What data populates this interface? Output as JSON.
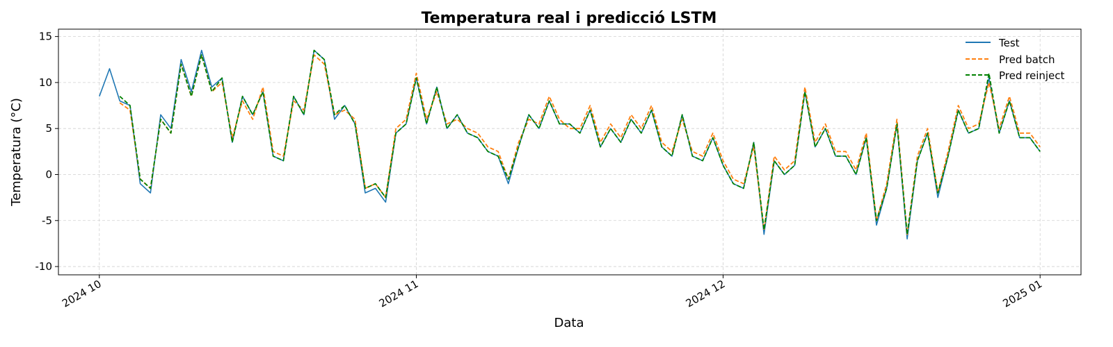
{
  "chart_data": {
    "type": "line",
    "title": "Temperatura real i predicció LSTM",
    "xlabel": "Data",
    "ylabel": "Temperatura (°C)",
    "x_ticks": [
      "2024 10",
      "2024 11",
      "2024 12",
      "2025 01"
    ],
    "x_tick_dates": [
      "2024-10-01",
      "2024-11-01",
      "2024-12-01",
      "2025-01-01"
    ],
    "xlim": [
      "2024-09-27",
      "2025-01-05"
    ],
    "y_ticks": [
      -10,
      -5,
      0,
      5,
      10,
      15
    ],
    "ylim": [
      -10.9,
      15.8
    ],
    "grid": true,
    "legend_position": "top-right",
    "series": [
      {
        "name": "Test",
        "color": "#1f77b4",
        "style": "solid"
      },
      {
        "name": "Pred batch",
        "color": "#ff7f0e",
        "style": "dashed"
      },
      {
        "name": "Pred reinject",
        "color": "#008000",
        "style": "dashed"
      }
    ],
    "x": [
      "2024-10-01",
      "2024-10-02",
      "2024-10-03",
      "2024-10-04",
      "2024-10-05",
      "2024-10-06",
      "2024-10-07",
      "2024-10-08",
      "2024-10-09",
      "2024-10-10",
      "2024-10-11",
      "2024-10-12",
      "2024-10-13",
      "2024-10-14",
      "2024-10-15",
      "2024-10-16",
      "2024-10-17",
      "2024-10-18",
      "2024-10-19",
      "2024-10-20",
      "2024-10-21",
      "2024-10-22",
      "2024-10-23",
      "2024-10-24",
      "2024-10-25",
      "2024-10-26",
      "2024-10-27",
      "2024-10-28",
      "2024-10-29",
      "2024-10-30",
      "2024-10-31",
      "2024-11-01",
      "2024-11-02",
      "2024-11-03",
      "2024-11-04",
      "2024-11-05",
      "2024-11-06",
      "2024-11-07",
      "2024-11-08",
      "2024-11-09",
      "2024-11-10",
      "2024-11-11",
      "2024-11-12",
      "2024-11-13",
      "2024-11-14",
      "2024-11-15",
      "2024-11-16",
      "2024-11-17",
      "2024-11-18",
      "2024-11-19",
      "2024-11-20",
      "2024-11-21",
      "2024-11-22",
      "2024-11-23",
      "2024-11-24",
      "2024-11-25",
      "2024-11-26",
      "2024-11-27",
      "2024-11-28",
      "2024-11-29",
      "2024-11-30",
      "2024-12-01",
      "2024-12-02",
      "2024-12-03",
      "2024-12-04",
      "2024-12-05",
      "2024-12-06",
      "2024-12-07",
      "2024-12-08",
      "2024-12-09",
      "2024-12-10",
      "2024-12-11",
      "2024-12-12",
      "2024-12-13",
      "2024-12-14",
      "2024-12-15",
      "2024-12-16",
      "2024-12-17",
      "2024-12-18",
      "2024-12-19",
      "2024-12-20",
      "2024-12-21",
      "2024-12-22",
      "2024-12-23",
      "2024-12-24",
      "2024-12-25",
      "2024-12-26",
      "2024-12-27",
      "2024-12-28",
      "2024-12-29",
      "2024-12-30",
      "2024-12-31",
      "2025-01-01"
    ],
    "test": [
      8.5,
      11.5,
      8.0,
      7.5,
      -1.0,
      -2.0,
      6.5,
      5.0,
      12.5,
      9.0,
      13.5,
      9.5,
      10.5,
      3.5,
      8.5,
      6.5,
      9.0,
      2.0,
      1.5,
      8.5,
      6.5,
      13.5,
      12.5,
      6.0,
      7.5,
      5.5,
      -2.0,
      -1.5,
      -3.0,
      4.5,
      5.5,
      10.5,
      5.5,
      9.5,
      5.0,
      6.5,
      4.5,
      4.0,
      2.5,
      2.0,
      -1.0,
      3.0,
      6.5,
      5.0,
      8.0,
      5.5,
      5.5,
      4.5,
      7.0,
      3.0,
      5.0,
      3.5,
      6.0,
      4.5,
      7.0,
      3.0,
      2.0,
      6.5,
      2.0,
      1.5,
      4.0,
      1.0,
      -1.0,
      -1.5,
      3.5,
      -6.5,
      1.5,
      0.0,
      1.0,
      9.0,
      3.0,
      5.0,
      2.0,
      2.0,
      0.0,
      4.0,
      -5.5,
      -1.5,
      5.5,
      -7.0,
      1.5,
      4.5,
      -2.5,
      2.0,
      7.0,
      4.5,
      5.0,
      10.5,
      4.5,
      8.0,
      4.0,
      4.0,
      2.5
    ],
    "pred_batch": [
      null,
      null,
      7.8,
      7.0,
      -0.5,
      -1.5,
      6.0,
      4.5,
      12.0,
      8.5,
      13.0,
      9.0,
      10.0,
      4.0,
      8.0,
      6.0,
      9.5,
      2.5,
      2.0,
      8.0,
      7.0,
      13.0,
      12.0,
      6.5,
      7.0,
      6.0,
      -1.5,
      -1.0,
      -2.5,
      5.0,
      6.0,
      11.0,
      6.0,
      9.0,
      5.5,
      6.0,
      5.0,
      4.5,
      3.0,
      2.5,
      -0.5,
      3.5,
      6.0,
      5.5,
      8.5,
      6.0,
      5.0,
      5.0,
      7.5,
      3.5,
      5.5,
      4.0,
      6.5,
      5.0,
      7.5,
      3.5,
      2.5,
      6.0,
      2.5,
      2.0,
      4.5,
      1.5,
      -0.5,
      -1.0,
      3.0,
      -6.0,
      2.0,
      0.5,
      1.5,
      9.5,
      3.5,
      5.5,
      2.5,
      2.5,
      0.5,
      4.5,
      -5.0,
      -1.0,
      6.0,
      -6.5,
      2.0,
      5.0,
      -2.0,
      2.5,
      7.5,
      5.0,
      5.5,
      10.0,
      5.0,
      8.5,
      4.5,
      4.5,
      3.0
    ],
    "pred_reinject": [
      null,
      null,
      8.5,
      7.5,
      -0.5,
      -1.5,
      6.0,
      4.5,
      12.0,
      8.5,
      13.0,
      9.0,
      10.5,
      3.5,
      8.5,
      6.5,
      9.0,
      2.0,
      1.5,
      8.5,
      6.5,
      13.5,
      12.5,
      6.5,
      7.5,
      5.5,
      -1.5,
      -1.0,
      -2.5,
      4.5,
      5.5,
      10.5,
      5.5,
      9.5,
      5.0,
      6.5,
      4.5,
      4.0,
      2.5,
      2.0,
      -0.5,
      3.0,
      6.5,
      5.0,
      8.0,
      5.5,
      5.5,
      4.5,
      7.0,
      3.0,
      5.0,
      3.5,
      6.0,
      4.5,
      7.0,
      3.0,
      2.0,
      6.5,
      2.0,
      1.5,
      4.0,
      1.0,
      -1.0,
      -1.5,
      3.5,
      -6.0,
      1.5,
      0.0,
      1.0,
      9.0,
      3.0,
      5.0,
      2.0,
      2.0,
      0.0,
      4.0,
      -5.0,
      -1.5,
      5.5,
      -6.5,
      1.5,
      4.5,
      -2.0,
      2.0,
      7.0,
      4.5,
      5.0,
      11.0,
      4.5,
      8.0,
      4.0,
      4.0,
      2.5
    ]
  }
}
